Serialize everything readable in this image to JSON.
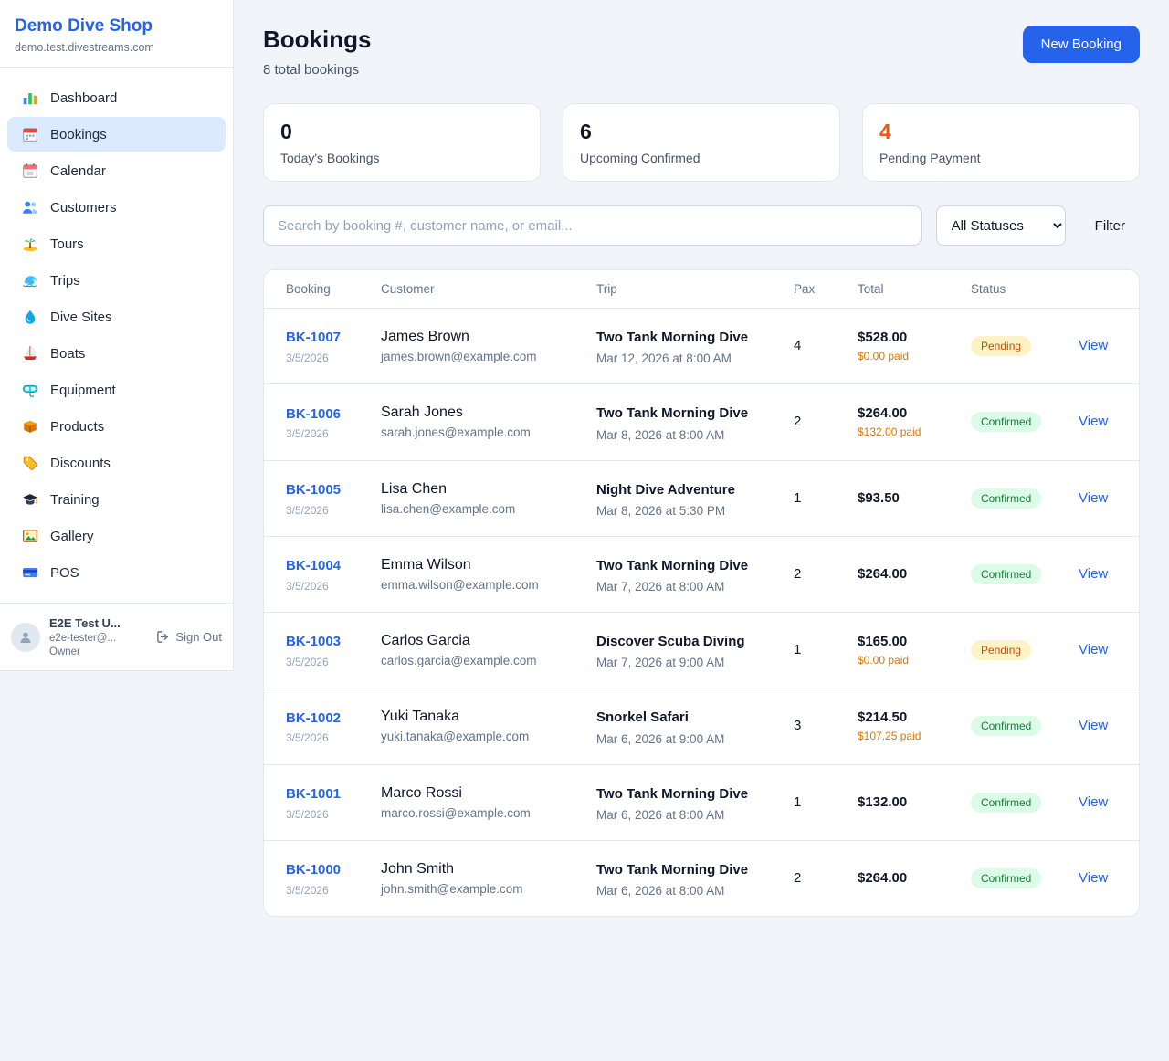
{
  "colors": {
    "accent_blue": "#2563eb",
    "pending_orange": "#d97706",
    "confirmed_green": "#16a34a",
    "pending_badge_bg": "#fef3c7",
    "confirmed_badge_bg": "#dcfce7",
    "active_nav_bg": "#dbeafe"
  },
  "sidebar": {
    "brand": {
      "name": "Demo Dive Shop",
      "domain": "demo.test.divestreams.com"
    },
    "items": [
      {
        "key": "dashboard",
        "label": "Dashboard",
        "icon": "chart-icon",
        "state": ""
      },
      {
        "key": "bookings",
        "label": "Bookings",
        "icon": "bookings-calendar-icon",
        "state": "active"
      },
      {
        "key": "calendar",
        "label": "Calendar",
        "icon": "calendar-icon",
        "state": ""
      },
      {
        "key": "customers",
        "label": "Customers",
        "icon": "users-icon",
        "state": ""
      },
      {
        "key": "tours",
        "label": "Tours",
        "icon": "palm-island-icon",
        "state": ""
      },
      {
        "key": "trips",
        "label": "Trips",
        "icon": "wave-icon",
        "state": ""
      },
      {
        "key": "dive-sites",
        "label": "Dive Sites",
        "icon": "water-splash-icon",
        "state": ""
      },
      {
        "key": "boats",
        "label": "Boats",
        "icon": "sailboat-icon",
        "state": ""
      },
      {
        "key": "equipment",
        "label": "Equipment",
        "icon": "dive-mask-icon",
        "state": ""
      },
      {
        "key": "products",
        "label": "Products",
        "icon": "box-icon",
        "state": ""
      },
      {
        "key": "discounts",
        "label": "Discounts",
        "icon": "tag-icon",
        "state": ""
      },
      {
        "key": "training",
        "label": "Training",
        "icon": "graduation-cap-icon",
        "state": ""
      },
      {
        "key": "gallery",
        "label": "Gallery",
        "icon": "picture-icon",
        "state": ""
      },
      {
        "key": "pos",
        "label": "POS",
        "icon": "credit-card-icon",
        "state": ""
      }
    ],
    "user": {
      "name": "E2E Test U...",
      "email": "e2e-tester@...",
      "role": "Owner",
      "sign_out_label": "Sign Out"
    }
  },
  "header": {
    "title": "Bookings",
    "subtitle": "8 total bookings",
    "new_booking_label": "New Booking"
  },
  "stats": [
    {
      "key": "todays-bookings",
      "value": "0",
      "label": "Today's Bookings",
      "accent": ""
    },
    {
      "key": "upcoming-confirmed",
      "value": "6",
      "label": "Upcoming Confirmed",
      "accent": ""
    },
    {
      "key": "pending-payment",
      "value": "4",
      "label": "Pending Payment",
      "accent": "orange"
    }
  ],
  "filters": {
    "search_placeholder": "Search by booking #, customer name, or email...",
    "status_selected": "All Statuses",
    "filter_label": "Filter"
  },
  "table": {
    "headers": {
      "booking": "Booking",
      "customer": "Customer",
      "trip": "Trip",
      "pax": "Pax",
      "total": "Total",
      "status": "Status"
    },
    "view_label": "View",
    "rows": [
      {
        "booking_id": "BK-1007",
        "booking_date": "3/5/2026",
        "customer_name": "James Brown",
        "customer_email": "james.brown@example.com",
        "trip_name": "Two Tank Morning Dive",
        "trip_datetime": "Mar 12, 2026 at 8:00 AM",
        "pax": "4",
        "total": "$528.00",
        "paid": "$0.00 paid",
        "status": "Pending",
        "status_class": "pending"
      },
      {
        "booking_id": "BK-1006",
        "booking_date": "3/5/2026",
        "customer_name": "Sarah Jones",
        "customer_email": "sarah.jones@example.com",
        "trip_name": "Two Tank Morning Dive",
        "trip_datetime": "Mar 8, 2026 at 8:00 AM",
        "pax": "2",
        "total": "$264.00",
        "paid": "$132.00 paid",
        "status": "Confirmed",
        "status_class": "confirmed"
      },
      {
        "booking_id": "BK-1005",
        "booking_date": "3/5/2026",
        "customer_name": "Lisa Chen",
        "customer_email": "lisa.chen@example.com",
        "trip_name": "Night Dive Adventure",
        "trip_datetime": "Mar 8, 2026 at 5:30 PM",
        "pax": "1",
        "total": "$93.50",
        "paid": "",
        "status": "Confirmed",
        "status_class": "confirmed"
      },
      {
        "booking_id": "BK-1004",
        "booking_date": "3/5/2026",
        "customer_name": "Emma Wilson",
        "customer_email": "emma.wilson@example.com",
        "trip_name": "Two Tank Morning Dive",
        "trip_datetime": "Mar 7, 2026 at 8:00 AM",
        "pax": "2",
        "total": "$264.00",
        "paid": "",
        "status": "Confirmed",
        "status_class": "confirmed"
      },
      {
        "booking_id": "BK-1003",
        "booking_date": "3/5/2026",
        "customer_name": "Carlos Garcia",
        "customer_email": "carlos.garcia@example.com",
        "trip_name": "Discover Scuba Diving",
        "trip_datetime": "Mar 7, 2026 at 9:00 AM",
        "pax": "1",
        "total": "$165.00",
        "paid": "$0.00 paid",
        "status": "Pending",
        "status_class": "pending"
      },
      {
        "booking_id": "BK-1002",
        "booking_date": "3/5/2026",
        "customer_name": "Yuki Tanaka",
        "customer_email": "yuki.tanaka@example.com",
        "trip_name": "Snorkel Safari",
        "trip_datetime": "Mar 6, 2026 at 9:00 AM",
        "pax": "3",
        "total": "$214.50",
        "paid": "$107.25 paid",
        "status": "Confirmed",
        "status_class": "confirmed"
      },
      {
        "booking_id": "BK-1001",
        "booking_date": "3/5/2026",
        "customer_name": "Marco Rossi",
        "customer_email": "marco.rossi@example.com",
        "trip_name": "Two Tank Morning Dive",
        "trip_datetime": "Mar 6, 2026 at 8:00 AM",
        "pax": "1",
        "total": "$132.00",
        "paid": "",
        "status": "Confirmed",
        "status_class": "confirmed"
      },
      {
        "booking_id": "BK-1000",
        "booking_date": "3/5/2026",
        "customer_name": "John Smith",
        "customer_email": "john.smith@example.com",
        "trip_name": "Two Tank Morning Dive",
        "trip_datetime": "Mar 6, 2026 at 8:00 AM",
        "pax": "2",
        "total": "$264.00",
        "paid": "",
        "status": "Confirmed",
        "status_class": "confirmed"
      }
    ]
  }
}
